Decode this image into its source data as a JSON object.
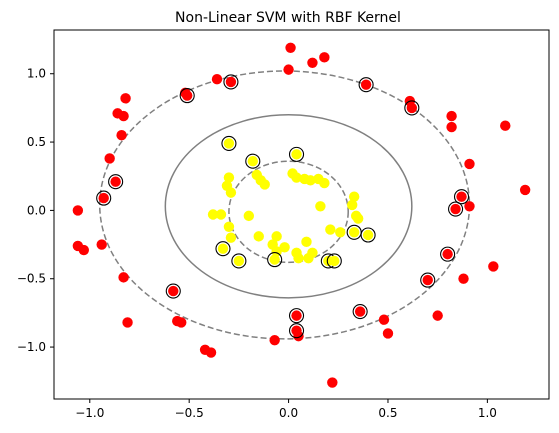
{
  "chart_data": {
    "type": "scatter",
    "title": "Non-Linear SVM with RBF Kernel",
    "xlim": [
      -1.18,
      1.31
    ],
    "ylim": [
      -1.38,
      1.32
    ],
    "x_ticks": [
      -1.0,
      -0.5,
      0.0,
      0.5,
      1.0
    ],
    "x_tick_labels": [
      "−1.0",
      "−0.5",
      "0.0",
      "0.5",
      "1.0"
    ],
    "y_ticks": [
      -1.0,
      -0.5,
      0.0,
      0.5,
      1.0
    ],
    "y_tick_labels": [
      "−1.0",
      "−0.5",
      "0.0",
      "0.5",
      "1.0"
    ],
    "grid": false,
    "colors": {
      "outer_class": "#ff0000",
      "inner_class": "#ffff00",
      "boundary": "#808080",
      "support_vector_ring": "#000000"
    },
    "decision_boundary": {
      "style": "solid",
      "rx": 0.62,
      "ry": 0.67,
      "center": [
        0.0,
        0.03
      ]
    },
    "margins": [
      {
        "style": "dashed",
        "rx": 0.93,
        "ry": 0.98,
        "center": [
          -0.02,
          0.04
        ]
      },
      {
        "style": "dashed",
        "rx": 0.3,
        "ry": 0.37,
        "center": [
          0.0,
          -0.01
        ]
      }
    ],
    "series": [
      {
        "class": "outer",
        "color": "#ff0000",
        "points": [
          [
            0.01,
            1.19
          ],
          [
            0.18,
            1.12
          ],
          [
            0.12,
            1.08
          ],
          [
            -0.36,
            0.96
          ],
          [
            0.0,
            1.03
          ],
          [
            -0.52,
            0.86
          ],
          [
            -0.86,
            0.71
          ],
          [
            -0.82,
            0.82
          ],
          [
            -0.83,
            0.69
          ],
          [
            -0.84,
            0.55
          ],
          [
            -0.9,
            0.38
          ],
          [
            -1.06,
            0.0
          ],
          [
            -1.06,
            -0.26
          ],
          [
            -1.03,
            -0.29
          ],
          [
            -0.94,
            -0.25
          ],
          [
            -0.83,
            -0.49
          ],
          [
            -0.81,
            -0.82
          ],
          [
            -0.56,
            -0.81
          ],
          [
            -0.54,
            -0.82
          ],
          [
            -0.42,
            -1.02
          ],
          [
            -0.39,
            -1.04
          ],
          [
            -0.07,
            -0.95
          ],
          [
            0.05,
            -0.92
          ],
          [
            0.22,
            -1.26
          ],
          [
            0.48,
            -0.8
          ],
          [
            0.5,
            -0.9
          ],
          [
            0.75,
            -0.77
          ],
          [
            0.88,
            -0.5
          ],
          [
            1.03,
            -0.41
          ],
          [
            1.19,
            0.15
          ],
          [
            1.09,
            0.62
          ],
          [
            0.91,
            0.34
          ],
          [
            0.82,
            0.69
          ],
          [
            0.82,
            0.61
          ],
          [
            0.91,
            0.03
          ],
          [
            0.61,
            0.8
          ]
        ]
      },
      {
        "class": "inner",
        "color": "#ffff00",
        "points": [
          [
            -0.3,
            0.24
          ],
          [
            -0.31,
            0.18
          ],
          [
            -0.29,
            0.13
          ],
          [
            -0.16,
            0.26
          ],
          [
            -0.14,
            0.22
          ],
          [
            -0.12,
            0.19
          ],
          [
            -0.38,
            -0.03
          ],
          [
            -0.34,
            -0.03
          ],
          [
            -0.2,
            -0.04
          ],
          [
            -0.3,
            -0.12
          ],
          [
            -0.29,
            -0.2
          ],
          [
            -0.15,
            -0.19
          ],
          [
            -0.06,
            -0.19
          ],
          [
            -0.08,
            -0.25
          ],
          [
            -0.06,
            -0.3
          ],
          [
            -0.02,
            -0.27
          ],
          [
            0.04,
            -0.31
          ],
          [
            0.05,
            -0.35
          ],
          [
            0.1,
            -0.35
          ],
          [
            0.12,
            -0.31
          ],
          [
            0.02,
            0.27
          ],
          [
            0.04,
            0.24
          ],
          [
            0.08,
            0.23
          ],
          [
            0.11,
            0.22
          ],
          [
            0.15,
            0.23
          ],
          [
            0.18,
            0.2
          ],
          [
            0.16,
            0.03
          ],
          [
            0.32,
            0.04
          ],
          [
            0.33,
            0.1
          ],
          [
            0.34,
            -0.04
          ],
          [
            0.35,
            -0.06
          ],
          [
            0.21,
            -0.14
          ],
          [
            0.26,
            -0.16
          ],
          [
            0.09,
            -0.23
          ]
        ]
      }
    ],
    "support_vectors": [
      {
        "class": "outer",
        "points": [
          [
            -0.29,
            0.94
          ],
          [
            -0.51,
            0.84
          ],
          [
            0.39,
            0.92
          ],
          [
            0.62,
            0.75
          ],
          [
            -0.87,
            0.21
          ],
          [
            -0.93,
            0.09
          ],
          [
            0.87,
            0.1
          ],
          [
            0.84,
            0.01
          ],
          [
            0.8,
            -0.32
          ],
          [
            0.7,
            -0.51
          ],
          [
            0.36,
            -0.74
          ],
          [
            0.04,
            -0.77
          ],
          [
            0.04,
            -0.88
          ],
          [
            -0.58,
            -0.59
          ]
        ]
      },
      {
        "class": "inner",
        "points": [
          [
            -0.3,
            0.49
          ],
          [
            -0.18,
            0.36
          ],
          [
            0.04,
            0.41
          ],
          [
            -0.33,
            -0.28
          ],
          [
            -0.25,
            -0.37
          ],
          [
            -0.07,
            -0.36
          ],
          [
            0.2,
            -0.37
          ],
          [
            0.23,
            -0.37
          ],
          [
            0.33,
            -0.16
          ],
          [
            0.4,
            -0.18
          ]
        ]
      }
    ]
  }
}
